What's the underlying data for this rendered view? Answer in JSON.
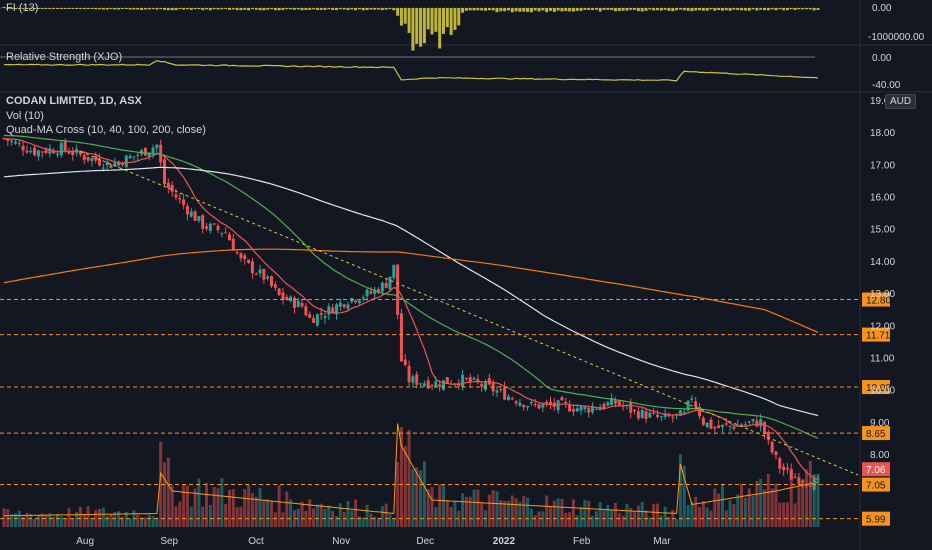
{
  "panes": {
    "fi": {
      "label": "FI (13)",
      "ticks": [
        "0.00",
        "-1000000.00"
      ]
    },
    "rs": {
      "label": "Relative Strength (XJO)",
      "ticks": [
        "0.00",
        "-40.00"
      ]
    }
  },
  "main": {
    "symbol": "CODAN LIMITED, 1D, ASX",
    "vol_label": "Vol (10)",
    "ma_label": "Quad-MA Cross (10, 40, 100, 200, close)",
    "currency": "AUD"
  },
  "colors": {
    "background": "#131722",
    "up": "#26a69a",
    "down": "#ef5350",
    "ma10": "#ef5350",
    "ma40": "#4caf50",
    "ma100": "#e0e3eb",
    "ma200": "#f57c00",
    "level": "#f7931a",
    "rs_line": "#c9c43a",
    "fi_bars": "#bdb636"
  },
  "chart_data": {
    "type": "candlestick",
    "title": "CODAN LIMITED, 1D, ASX",
    "y_axis_ticks": [
      "19.00",
      "18.00",
      "17.00",
      "16.00",
      "15.00",
      "14.00",
      "13.00",
      "12.00",
      "11.00",
      "10.00",
      "9.00",
      "8.00"
    ],
    "ylim": [
      5.7,
      19.0
    ],
    "x_axis_ticks": [
      "Aug",
      "Sep",
      "Oct",
      "Nov",
      "Dec",
      "2022",
      "Feb",
      "Mar"
    ],
    "price_levels": [
      {
        "label": "12.80",
        "value": 12.8
      },
      {
        "label": "11.71",
        "value": 11.71
      },
      {
        "label": "10.08",
        "value": 10.08
      },
      {
        "label": "8.65",
        "value": 8.65
      },
      {
        "label": "7.05",
        "value": 7.05
      },
      {
        "label": "5.99",
        "value": 5.99
      }
    ],
    "last_price": {
      "label": "7.06",
      "value": 7.06
    },
    "close_anchors": [
      [
        0,
        17.8
      ],
      [
        8,
        17.4
      ],
      [
        15,
        17.5
      ],
      [
        22,
        17.2
      ],
      [
        28,
        17.0
      ],
      [
        35,
        17.3
      ],
      [
        40,
        17.6
      ],
      [
        42,
        16.4
      ],
      [
        48,
        15.6
      ],
      [
        52,
        15.1
      ],
      [
        58,
        14.9
      ],
      [
        62,
        14.0
      ],
      [
        68,
        13.5
      ],
      [
        72,
        12.9
      ],
      [
        78,
        12.6
      ],
      [
        80,
        12.2
      ],
      [
        84,
        12.4
      ],
      [
        90,
        12.8
      ],
      [
        96,
        13.0
      ],
      [
        100,
        13.3
      ],
      [
        102,
        13.8
      ],
      [
        104,
        10.9
      ],
      [
        106,
        10.3
      ],
      [
        112,
        10.2
      ],
      [
        120,
        10.3
      ],
      [
        126,
        10.1
      ],
      [
        132,
        9.8
      ],
      [
        138,
        9.5
      ],
      [
        146,
        9.5
      ],
      [
        152,
        9.4
      ],
      [
        160,
        9.6
      ],
      [
        165,
        9.3
      ],
      [
        172,
        9.1
      ],
      [
        178,
        9.2
      ],
      [
        180,
        9.8
      ],
      [
        183,
        9.0
      ],
      [
        186,
        8.8
      ],
      [
        192,
        8.9
      ],
      [
        198,
        9.0
      ],
      [
        200,
        8.3
      ],
      [
        203,
        7.6
      ],
      [
        206,
        7.3
      ],
      [
        210,
        7.2
      ],
      [
        213,
        7.06
      ]
    ],
    "fi_anchors": [
      [
        0,
        0
      ],
      [
        40,
        -0.05
      ],
      [
        102,
        -0.05
      ],
      [
        106,
        -1.0
      ],
      [
        118,
        -0.9
      ],
      [
        120,
        -0.1
      ],
      [
        213,
        -0.05
      ]
    ],
    "rs_anchors": [
      [
        0,
        -12
      ],
      [
        38,
        -12
      ],
      [
        40,
        -5
      ],
      [
        45,
        -12
      ],
      [
        102,
        -16
      ],
      [
        104,
        -35
      ],
      [
        112,
        -32
      ],
      [
        176,
        -36
      ],
      [
        178,
        -22
      ],
      [
        213,
        -32
      ]
    ],
    "series": [
      {
        "name": "Vol (10)",
        "kind": "volume",
        "anchors": [
          [
            0,
            0.25
          ],
          [
            40,
            0.3
          ],
          [
            41,
            1.2
          ],
          [
            44,
            0.8
          ],
          [
            102,
            0.3
          ],
          [
            103,
            2.3
          ],
          [
            104,
            1.8
          ],
          [
            112,
            0.6
          ],
          [
            176,
            0.3
          ],
          [
            177,
            1.4
          ],
          [
            180,
            0.5
          ],
          [
            202,
            0.8
          ],
          [
            213,
            1.0
          ]
        ]
      }
    ]
  }
}
